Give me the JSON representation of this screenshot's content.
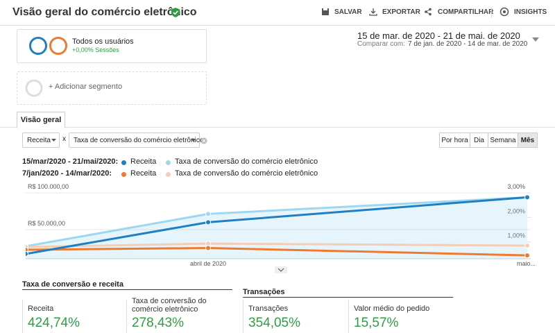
{
  "header": {
    "title": "Visão geral do comércio eletrônico",
    "actions": [
      "SALVAR",
      "EXPORTAR",
      "COMPARTILHAR",
      "INSIGHTS"
    ]
  },
  "segments": {
    "name": "Todos os usuários",
    "change": "+0,00% Sessões",
    "add": "+ Adicionar segmento"
  },
  "date_range": {
    "range": "15 de mar. de 2020 - 21 de mai. de 2020",
    "compare_label": "Comparar com:",
    "compare": "7 de jan. de 2020 - 14 de mar. de 2020"
  },
  "tab": "Visão geral",
  "controls": {
    "metric1": "Receita",
    "x": "x",
    "metric2": "Taxa de conversão do comércio eletrônico",
    "granularity": [
      "Por hora",
      "Dia",
      "Semana",
      "Mês"
    ]
  },
  "chart_data": {
    "type": "line",
    "periods": [
      "15/mar/2020 - 21/mai/2020:",
      "7/jan/2020 - 14/mar/2020:"
    ],
    "categories": [
      null,
      "abril de 2020",
      "maio..."
    ],
    "series": [
      {
        "name": "Receita",
        "color": "#1f7fc0",
        "values": [
          17000,
          60000,
          94000
        ]
      },
      {
        "name": "Taxa de conversão do comércio eletrônico",
        "color": "#9dd8ef",
        "axis": "y2",
        "area": true,
        "values": [
          0.82,
          2.14,
          2.82
        ]
      },
      {
        "name": "Receita",
        "color": "#ee7a30",
        "values": [
          22600,
          25000,
          15000
        ]
      },
      {
        "name": "Taxa de conversão do comércio eletrônico",
        "color": "#f4cdb6",
        "axis": "y2",
        "values": [
          0.79,
          0.93,
          0.85
        ]
      }
    ],
    "ylim": [
      0,
      110000
    ],
    "yticks": [
      {
        "value": 50000,
        "label": "R$ 50.000,00"
      },
      {
        "value": 100000,
        "label": "R$ 100.000,00"
      }
    ],
    "y2lim": [
      0,
      3.3
    ],
    "y2ticks": [
      {
        "value": 1,
        "label": "1,00%"
      },
      {
        "value": 2,
        "label": "2,00%"
      },
      {
        "value": 3,
        "label": "3,00%"
      }
    ],
    "grid": true
  },
  "sections": [
    {
      "title": "Taxa de conversão e receita",
      "metrics": [
        {
          "label": "Receita",
          "value": "424,74%"
        },
        {
          "label": "Taxa de conversão do comércio eletrônico",
          "value": "278,43%"
        }
      ]
    },
    {
      "title": "Transações",
      "metrics": [
        {
          "label": "Transações",
          "value": "354,05%"
        },
        {
          "label": "Valor médio do pedido",
          "value": "15,57%"
        }
      ]
    }
  ]
}
